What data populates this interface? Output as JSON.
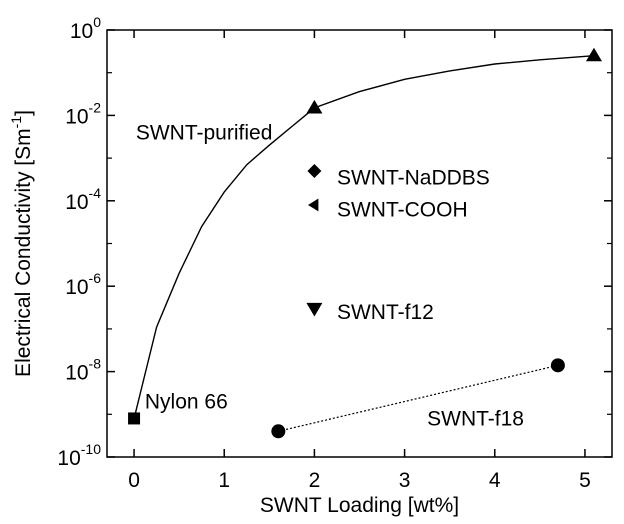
{
  "chart_data": {
    "type": "scatter",
    "title": "",
    "xlabel": "SWNT Loading [wt%]",
    "ylabel_parts": {
      "main": "Electrical Conductivity [Sm",
      "sup": "-1",
      "tail": "]"
    },
    "y_scale": "log",
    "xlim": [
      -0.3,
      5.3
    ],
    "ylim_exp": [
      -10,
      0
    ],
    "x_ticks": [
      "0",
      "1",
      "2",
      "3",
      "4",
      "5"
    ],
    "x_tick_values": [
      0,
      1,
      2,
      3,
      4,
      5
    ],
    "y_ticks": [
      {
        "exp": -10,
        "base": "10",
        "sup": "-10"
      },
      {
        "exp": -8,
        "base": "10",
        "sup": "-8"
      },
      {
        "exp": -6,
        "base": "10",
        "sup": "-6"
      },
      {
        "exp": -4,
        "base": "10",
        "sup": "-4"
      },
      {
        "exp": -2,
        "base": "10",
        "sup": "-2"
      },
      {
        "exp": 0,
        "base": "10",
        "sup": "0"
      }
    ],
    "grid": false,
    "legend": "none",
    "points": [
      {
        "label": "Nylon 66",
        "marker": "square",
        "x": 0,
        "y": 8e-10
      },
      {
        "label": "SWNT-purified",
        "marker": "triangle-up",
        "x": 2.0,
        "y": 0.015
      },
      {
        "label": "SWNT-purified",
        "marker": "triangle-up",
        "x": 5.1,
        "y": 0.25
      },
      {
        "label": "SWNT-NaDDBS",
        "marker": "diamond",
        "x": 2.0,
        "y": 0.0005
      },
      {
        "label": "SWNT-COOH",
        "marker": "triangle-left",
        "x": 2.0,
        "y": 8e-05
      },
      {
        "label": "SWNT-f12",
        "marker": "triangle-down",
        "x": 2.0,
        "y": 3e-07
      },
      {
        "label": "SWNT-f18",
        "marker": "circle",
        "x": 1.6,
        "y": 4e-10
      },
      {
        "label": "SWNT-f18",
        "marker": "circle",
        "x": 4.7,
        "y": 1.4e-08
      }
    ],
    "curve_purified": {
      "style": "solid",
      "x": [
        0,
        0.25,
        0.5,
        0.75,
        1.0,
        1.25,
        1.5,
        1.75,
        2.0,
        2.5,
        3.0,
        3.5,
        4.0,
        4.5,
        5.1
      ],
      "y": [
        8e-10,
        1.1e-07,
        2e-06,
        2.5e-05,
        0.00016,
        0.0007,
        0.002,
        0.0055,
        0.015,
        0.036,
        0.07,
        0.11,
        0.16,
        0.2,
        0.25
      ]
    },
    "line_f18": {
      "style": "dotted",
      "x": [
        1.6,
        4.7
      ],
      "y": [
        4e-10,
        1.4e-08
      ]
    },
    "annotations": [
      {
        "key": "purified",
        "text": "SWNT-purified",
        "x": 0.02,
        "y_exp": -2.4
      },
      {
        "key": "naddbs",
        "text": "SWNT-NaDDBS",
        "x": 2.25,
        "y_exp": -3.45
      },
      {
        "key": "cooh",
        "text": "SWNT-COOH",
        "x": 2.25,
        "y_exp": -4.2
      },
      {
        "key": "f12",
        "text": "SWNT-f12",
        "x": 2.25,
        "y_exp": -6.6
      },
      {
        "key": "f18",
        "text": "SWNT-f18",
        "x": 3.25,
        "y_exp": -9.1
      },
      {
        "key": "nylon",
        "text": "Nylon 66",
        "x": 0.12,
        "y_exp": -8.7
      }
    ]
  }
}
